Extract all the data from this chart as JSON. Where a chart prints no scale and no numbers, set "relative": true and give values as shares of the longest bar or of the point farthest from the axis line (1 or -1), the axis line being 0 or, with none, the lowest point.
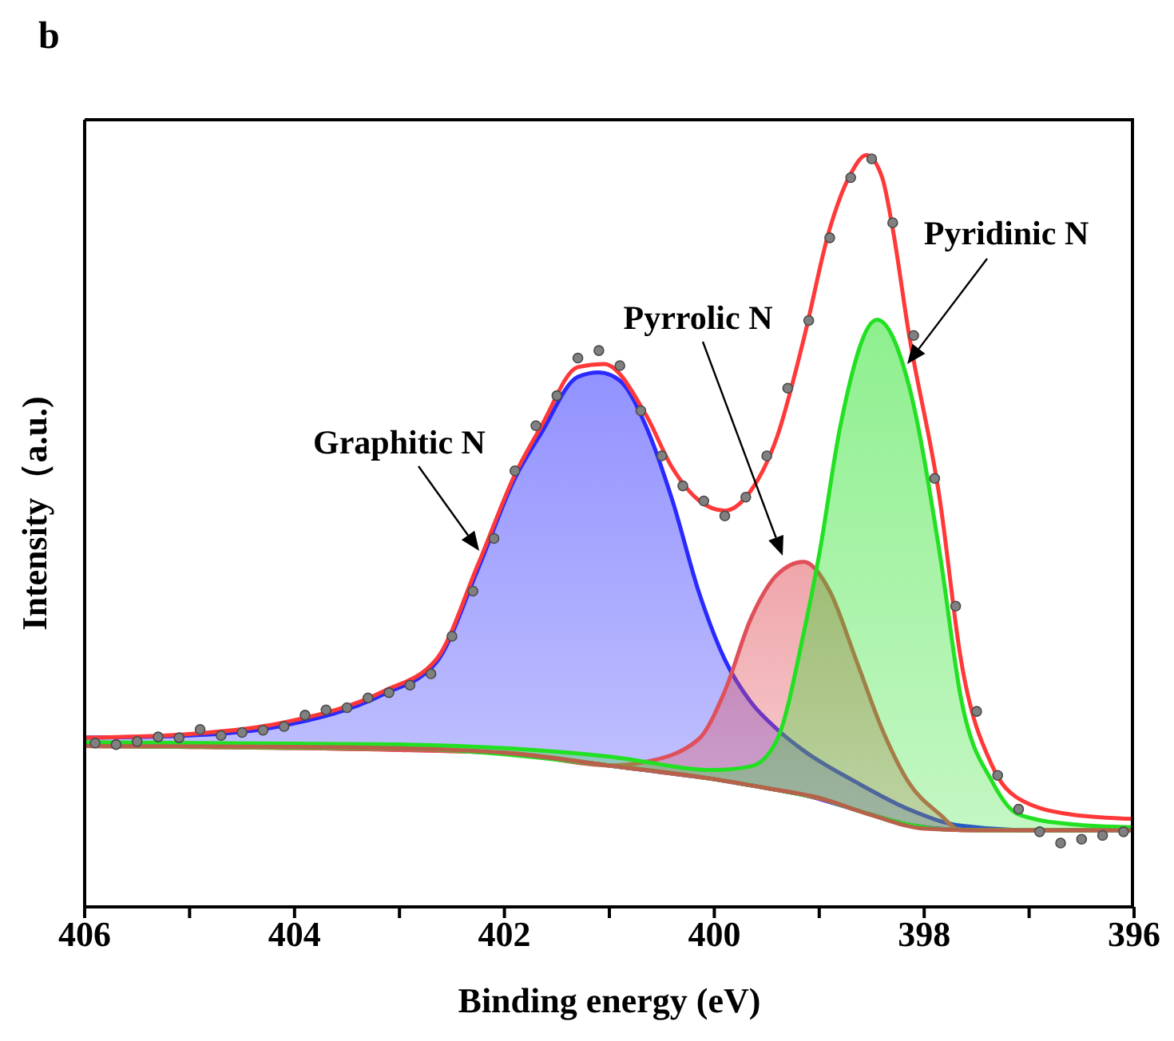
{
  "chart_data": {
    "type": "line",
    "relative": true,
    "xlabel": "Binding energy (eV)",
    "ylabel": "Intensity（a.u.)",
    "xlim": [
      406,
      396
    ],
    "xticks": [
      406,
      {
        "value": 405,
        "label": null
      },
      404,
      {
        "value": 403,
        "label": null
      },
      402,
      {
        "value": 401,
        "label": null
      },
      400,
      {
        "value": 399,
        "label": null
      },
      398,
      {
        "value": 397,
        "label": null
      },
      396
    ],
    "tick_labels": "x",
    "annotations": [
      "b",
      "Graphitic N",
      "Pyrrolic N",
      "Pyridinic N"
    ],
    "series": [
      {
        "type": "scatter",
        "marker": "circle",
        "color": "#808080",
        "x": [
          405.9,
          405.7,
          405.5,
          405.3,
          405.1,
          404.9,
          404.7,
          404.5,
          404.3,
          404.1,
          403.9,
          403.7,
          403.5,
          403.3,
          403.1,
          402.9,
          402.7,
          402.5,
          402.3,
          402.1,
          401.9,
          401.7,
          401.5,
          401.3,
          401.1,
          400.9,
          400.7,
          400.5,
          400.3,
          400.1,
          399.9,
          399.7,
          399.5,
          399.3,
          399.1,
          398.9,
          398.7,
          398.5,
          398.3,
          398.1,
          397.9,
          397.7,
          397.5,
          397.3,
          397.1,
          396.9,
          396.7,
          396.5,
          396.3,
          396.1
        ],
        "values": [
          0.218,
          0.216,
          0.22,
          0.226,
          0.225,
          0.236,
          0.228,
          0.232,
          0.235,
          0.24,
          0.255,
          0.262,
          0.265,
          0.278,
          0.285,
          0.295,
          0.31,
          0.36,
          0.42,
          0.49,
          0.58,
          0.64,
          0.68,
          0.73,
          0.74,
          0.72,
          0.66,
          0.6,
          0.56,
          0.54,
          0.52,
          0.545,
          0.6,
          0.69,
          0.78,
          0.89,
          0.97,
          0.995,
          0.91,
          0.76,
          0.57,
          0.4,
          0.26,
          0.175,
          0.13,
          0.1,
          0.085,
          0.09,
          0.095,
          0.1
        ]
      },
      {
        "type": "area",
        "color": "#2a2aff",
        "x": [
          406,
          405,
          404.15,
          403.15,
          402.65,
          402.25,
          401.9,
          401.65,
          401.3,
          401.1,
          400.9,
          400.65,
          400.4,
          400.15,
          399.9,
          399.65,
          399.4,
          399.15,
          398.65,
          398.15,
          397.65,
          397,
          396
        ],
        "values": [
          0.225,
          0.228,
          0.24,
          0.283,
          0.325,
          0.45,
          0.57,
          0.63,
          0.705,
          0.711,
          0.7,
          0.639,
          0.541,
          0.42,
          0.329,
          0.272,
          0.236,
          0.208,
          0.166,
          0.13,
          0.108,
          0.102,
          0.102
        ]
      },
      {
        "type": "area",
        "color": "#e0505a",
        "x": [
          406,
          402,
          401,
          400.65,
          400.15,
          399.9,
          399.65,
          399.4,
          399.15,
          398.9,
          398.65,
          398.4,
          398.15,
          397.85,
          397.65,
          397,
          396
        ],
        "values": [
          0.214,
          0.205,
          0.188,
          0.193,
          0.223,
          0.287,
          0.384,
          0.442,
          0.459,
          0.42,
          0.329,
          0.236,
          0.166,
          0.123,
          0.102,
          0.102,
          0.102
        ]
      },
      {
        "type": "area",
        "color": "#22e022",
        "x": [
          406,
          403,
          401,
          400,
          399.65,
          399.4,
          399.15,
          399,
          398.8,
          398.45,
          398.15,
          397.85,
          397.65,
          397.35,
          397.1,
          396.6,
          396
        ],
        "values": [
          0.219,
          0.216,
          0.2,
          0.182,
          0.187,
          0.223,
          0.363,
          0.469,
          0.639,
          0.781,
          0.696,
          0.469,
          0.278,
          0.166,
          0.123,
          0.11,
          0.106
        ]
      },
      {
        "color": "#ff3838",
        "x": [
          406,
          405,
          404.15,
          403.15,
          402.65,
          402.25,
          401.9,
          401.65,
          401.3,
          401.05,
          400.65,
          400.4,
          400.15,
          399.9,
          399.65,
          399.4,
          399.15,
          398.9,
          398.7,
          398.55,
          398.4,
          398.3,
          398.15,
          397.85,
          397.65,
          397.35,
          397.1,
          396.6,
          396
        ],
        "values": [
          0.225,
          0.23,
          0.244,
          0.287,
          0.329,
          0.456,
          0.575,
          0.639,
          0.718,
          0.722,
          0.654,
          0.584,
          0.541,
          0.527,
          0.554,
          0.626,
          0.754,
          0.902,
          0.975,
          1.0,
          0.97,
          0.902,
          0.766,
          0.541,
          0.329,
          0.187,
          0.144,
          0.123,
          0.117
        ]
      },
      {
        "color": "#b8604c",
        "x": [
          406,
          404,
          403,
          402,
          401,
          400,
          399.5,
          399,
          398.5,
          398,
          397.5,
          396
        ],
        "values": [
          0.214,
          0.213,
          0.211,
          0.205,
          0.188,
          0.17,
          0.158,
          0.145,
          0.122,
          0.104,
          0.102,
          0.102
        ]
      }
    ]
  }
}
